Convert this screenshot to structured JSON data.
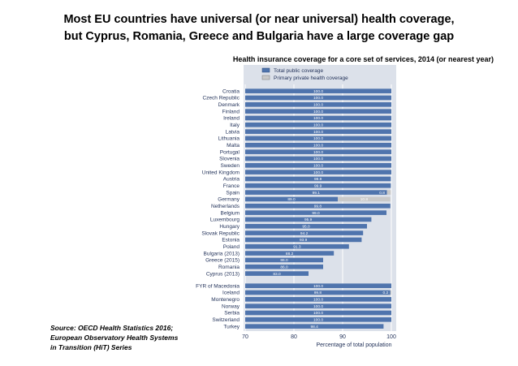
{
  "title_line1": "Most EU countries have universal (or near universal) health coverage,",
  "title_line2": "but Cyprus, Romania, Greece and Bulgaria have a large coverage gap",
  "subtitle": "Health insurance coverage for a core set of services, 2014 (or nearest year)",
  "source_lines": [
    "Source: OECD Health Statistics 2016;",
    "European Observatory Health Systems",
    "in Transition (HiT) Series"
  ],
  "colors": {
    "public": "#4f74ad",
    "private": "#c9c9c9",
    "panel": "#dce1ea",
    "grid": "#ffffff"
  },
  "chart_data": {
    "type": "bar",
    "orientation": "horizontal",
    "stacked": true,
    "xlabel": "Percentage of total population",
    "xlim": [
      70,
      100
    ],
    "xticks": [
      70,
      80,
      90,
      100
    ],
    "legend": [
      "Total public coverage",
      "Primary private health coverage"
    ],
    "legend_position": "top",
    "groups": [
      {
        "rows": [
          {
            "country": "Croatia",
            "public": 100.0,
            "private": 0
          },
          {
            "country": "Czech Republic",
            "public": 100.0,
            "private": 0
          },
          {
            "country": "Denmark",
            "public": 100.0,
            "private": 0
          },
          {
            "country": "Finland",
            "public": 100.0,
            "private": 0
          },
          {
            "country": "Ireland",
            "public": 100.0,
            "private": 0
          },
          {
            "country": "Italy",
            "public": 100.0,
            "private": 0
          },
          {
            "country": "Latvia",
            "public": 100.0,
            "private": 0
          },
          {
            "country": "Lithuania",
            "public": 100.0,
            "private": 0
          },
          {
            "country": "Malta",
            "public": 100.0,
            "private": 0
          },
          {
            "country": "Portugal",
            "public": 100.0,
            "private": 0
          },
          {
            "country": "Slovenia",
            "public": 100.0,
            "private": 0
          },
          {
            "country": "Sweden",
            "public": 100.0,
            "private": 0
          },
          {
            "country": "United Kingdom",
            "public": 100.0,
            "private": 0
          },
          {
            "country": "Austria",
            "public": 99.9,
            "private": 0
          },
          {
            "country": "France",
            "public": 99.9,
            "private": 0
          },
          {
            "country": "Spain",
            "public": 99.1,
            "private": 0.8,
            "public_label": "99.1",
            "private_label": "0.8"
          },
          {
            "country": "Germany",
            "public": 89.0,
            "private": 10.8,
            "public_label": "89.0",
            "private_label": "10.8"
          },
          {
            "country": "Netherlands",
            "public": 99.8,
            "private": 0
          },
          {
            "country": "Belgium",
            "public": 99.0,
            "private": 0
          },
          {
            "country": "Luxembourg",
            "public": 95.9,
            "private": 0
          },
          {
            "country": "Hungary",
            "public": 95.0,
            "private": 0
          },
          {
            "country": "Slovak Republic",
            "public": 94.2,
            "private": 0
          },
          {
            "country": "Estonia",
            "public": 93.9,
            "private": 0
          },
          {
            "country": "Poland",
            "public": 91.3,
            "private": 0
          },
          {
            "country": "Bulgaria (2013)",
            "public": 88.2,
            "private": 0
          },
          {
            "country": "Greece (2015)",
            "public": 86.0,
            "private": 0
          },
          {
            "country": "Romania",
            "public": 86.0,
            "private": 0
          },
          {
            "country": "Cyprus (2013)",
            "public": 83.0,
            "private": 0
          }
        ]
      },
      {
        "rows": [
          {
            "country": "FYR of Macedonia",
            "public": 100.0,
            "private": 0
          },
          {
            "country": "Iceland",
            "public": 99.8,
            "private": 0.2,
            "public_label": "99.8",
            "private_label": "0.2"
          },
          {
            "country": "Montenegro",
            "public": 100.0,
            "private": 0
          },
          {
            "country": "Norway",
            "public": 100.0,
            "private": 0
          },
          {
            "country": "Serbia",
            "public": 100.0,
            "private": 0
          },
          {
            "country": "Switzerland",
            "public": 100.0,
            "private": 0
          },
          {
            "country": "Turkey",
            "public": 98.4,
            "private": 0
          }
        ]
      }
    ]
  }
}
